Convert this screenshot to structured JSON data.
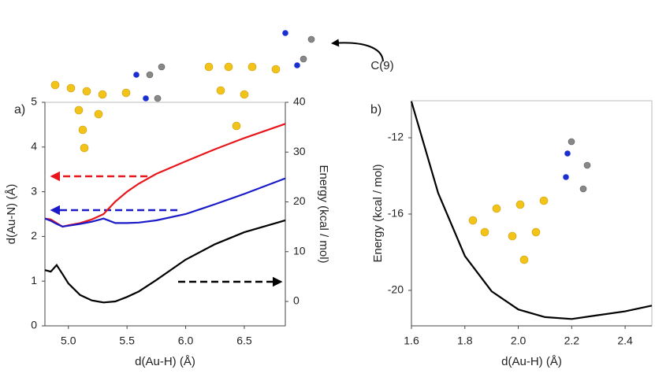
{
  "chart_data": [
    {
      "type": "line",
      "panel_label": "a)",
      "annotation": "C(9)",
      "x_label": "d(Au-H) (Å)",
      "y_label": "d(Au-N) (Å)",
      "y2_label": "Energy (kcal / mol)",
      "x": [
        4.8,
        4.85,
        4.9,
        4.95,
        5.0,
        5.1,
        5.2,
        5.3,
        5.4,
        5.5,
        5.6,
        5.75,
        6.0,
        6.25,
        6.5,
        6.85
      ],
      "series": [
        {
          "color": "#e8161b",
          "values": [
            2.4,
            2.38,
            2.3,
            2.22,
            2.25,
            2.3,
            2.38,
            2.5,
            2.78,
            3.0,
            3.18,
            3.4,
            3.68,
            3.95,
            4.2,
            4.52
          ]
        },
        {
          "color": "#1a1ac8",
          "values": [
            2.4,
            2.35,
            2.28,
            2.22,
            2.24,
            2.28,
            2.33,
            2.4,
            2.3,
            2.3,
            2.31,
            2.36,
            2.5,
            2.72,
            2.95,
            3.3
          ]
        },
        {
          "color": "#000000",
          "axis": "y2",
          "values": [
            6.3,
            6.0,
            7.3,
            5.5,
            3.6,
            1.3,
            0.2,
            -0.2,
            0,
            0.9,
            2.0,
            4.3,
            8.4,
            11.5,
            13.9,
            16.3
          ]
        }
      ],
      "xlim": [
        4.8,
        6.85
      ],
      "xticks": [
        {
          "value": 5,
          "label": "5.0"
        },
        5.5,
        {
          "value": 6,
          "label": "6.0"
        },
        6.5
      ],
      "ylim": [
        0,
        5
      ],
      "yticks": [
        0,
        1,
        2,
        3,
        4,
        5
      ],
      "y2lim": [
        -4.9,
        40
      ],
      "y2ticks": [
        0,
        10,
        20,
        30,
        40
      ]
    },
    {
      "type": "line",
      "panel_label": "b)",
      "x_label": "d(Au-H) (Å)",
      "y_label": "Energy (kcal / mol)",
      "x": [
        1.6,
        1.7,
        1.8,
        1.9,
        2.0,
        2.1,
        2.2,
        2.3,
        2.4,
        2.5
      ],
      "series": [
        {
          "color": "#000000",
          "values": [
            -10.1,
            -14.9,
            -18.2,
            -20.05,
            -21.0,
            -21.4,
            -21.5,
            -21.3,
            -21.1,
            -20.8
          ]
        }
      ],
      "xlim": [
        1.6,
        2.5
      ],
      "xticks": [
        1.6,
        1.8,
        {
          "value": 2,
          "label": "2.0"
        },
        2.2,
        2.4
      ],
      "ylim": [
        -21.86,
        -10.06
      ],
      "yticks": [
        -12,
        -16,
        -20
      ]
    }
  ]
}
